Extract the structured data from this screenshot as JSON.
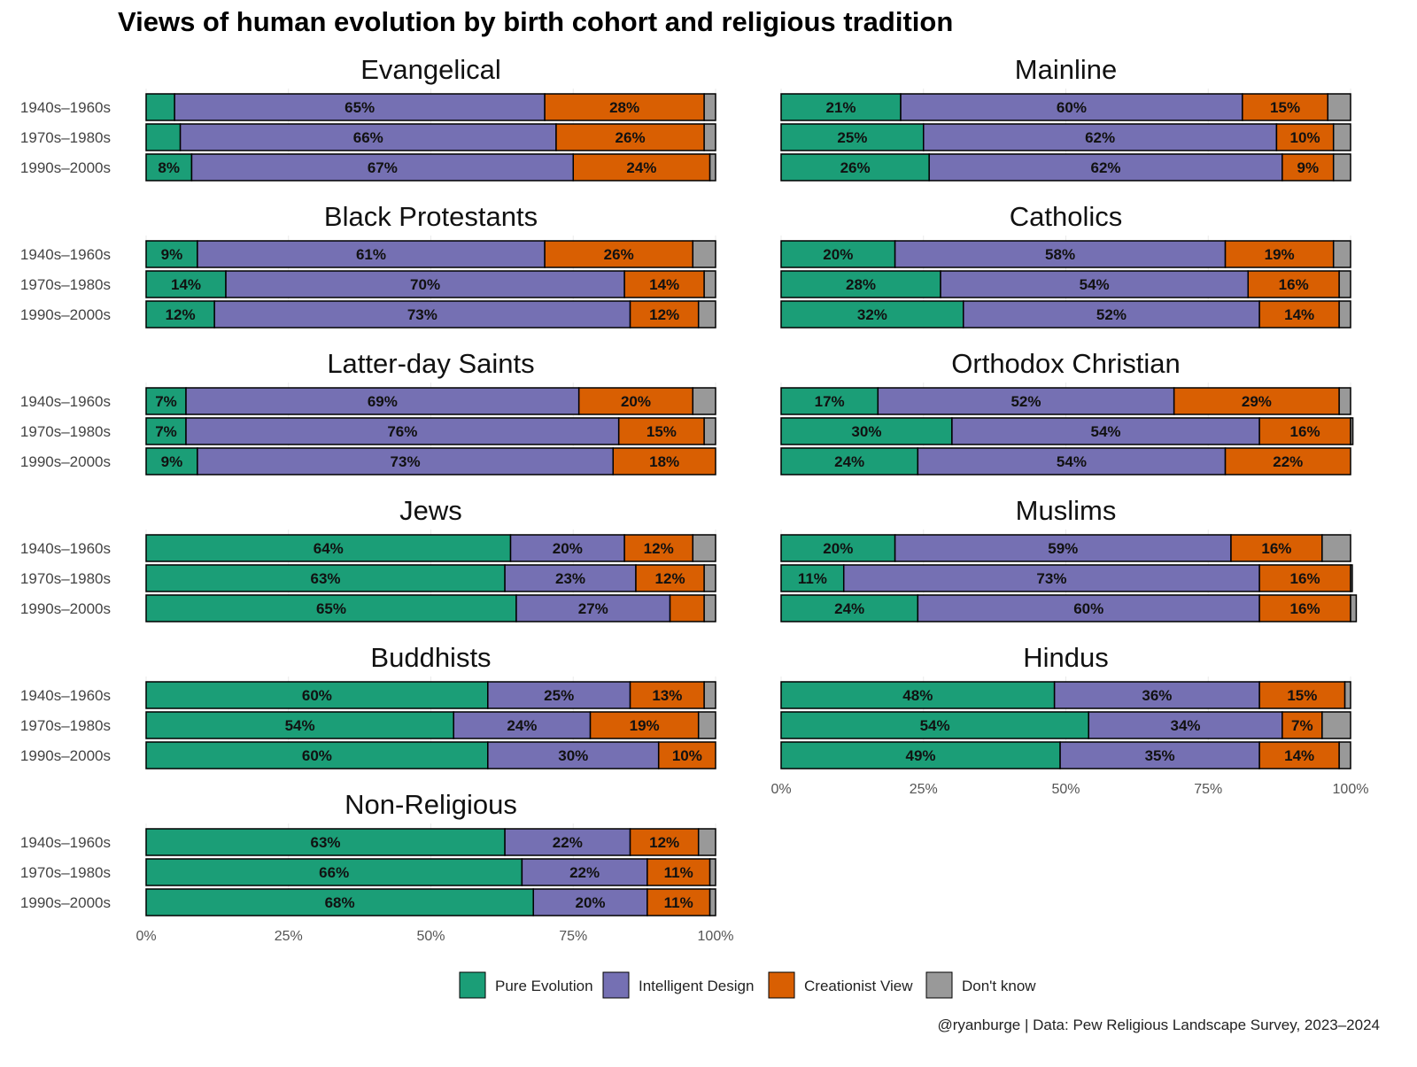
{
  "chart_data": {
    "type": "bar",
    "orientation": "horizontal-stacked",
    "title": "Views of human evolution by birth cohort and religious tradition",
    "caption": "@ryanburge | Data: Pew Religious Landscape Survey, 2023–2024",
    "categories": [
      "1940s–1960s",
      "1970s–1980s",
      "1990s–2000s"
    ],
    "xlim": [
      0,
      100
    ],
    "x_ticks": [
      "0%",
      "25%",
      "50%",
      "75%",
      "100%"
    ],
    "label_min_value": 7,
    "legend": {
      "position": "bottom",
      "entries": [
        {
          "name": "Pure Evolution",
          "color": "#1b9e77"
        },
        {
          "name": "Intelligent Design",
          "color": "#7570b3"
        },
        {
          "name": "Creationist View",
          "color": "#d95f02"
        },
        {
          "name": "Don't know",
          "color": "#999999"
        }
      ]
    },
    "panels": [
      {
        "name": "Evangelical",
        "rows": [
          [
            5,
            65,
            28,
            2
          ],
          [
            6,
            66,
            26,
            2
          ],
          [
            8,
            67,
            24,
            1
          ]
        ]
      },
      {
        "name": "Mainline",
        "rows": [
          [
            21,
            60,
            15,
            4
          ],
          [
            25,
            62,
            10,
            3
          ],
          [
            26,
            62,
            9,
            3
          ]
        ]
      },
      {
        "name": "Black Protestants",
        "rows": [
          [
            9,
            61,
            26,
            4
          ],
          [
            14,
            70,
            14,
            2
          ],
          [
            12,
            73,
            12,
            3
          ]
        ]
      },
      {
        "name": "Catholics",
        "rows": [
          [
            20,
            58,
            19,
            3
          ],
          [
            28,
            54,
            16,
            2
          ],
          [
            32,
            52,
            14,
            2
          ]
        ]
      },
      {
        "name": "Latter-day Saints",
        "rows": [
          [
            7,
            69,
            20,
            4
          ],
          [
            7,
            76,
            15,
            2
          ],
          [
            9,
            73,
            18,
            0
          ]
        ]
      },
      {
        "name": "Orthodox Christian",
        "rows": [
          [
            17,
            52,
            29,
            2
          ],
          [
            30,
            54,
            16,
            0.4
          ],
          [
            24,
            54,
            22,
            0
          ]
        ]
      },
      {
        "name": "Jews",
        "rows": [
          [
            64,
            20,
            12,
            4
          ],
          [
            63,
            23,
            12,
            2
          ],
          [
            65,
            27,
            6,
            2
          ]
        ]
      },
      {
        "name": "Muslims",
        "rows": [
          [
            20,
            59,
            16,
            5
          ],
          [
            11,
            73,
            16,
            0.3
          ],
          [
            24,
            60,
            16,
            1
          ]
        ]
      },
      {
        "name": "Buddhists",
        "rows": [
          [
            60,
            25,
            13,
            2
          ],
          [
            54,
            24,
            19,
            3
          ],
          [
            60,
            30,
            10,
            0
          ]
        ]
      },
      {
        "name": "Hindus",
        "rows": [
          [
            48,
            36,
            15,
            1
          ],
          [
            54,
            34,
            7,
            5
          ],
          [
            49,
            35,
            14,
            2
          ]
        ]
      },
      {
        "name": "Non-Religious",
        "rows": [
          [
            63,
            22,
            12,
            3
          ],
          [
            66,
            22,
            11,
            1
          ],
          [
            68,
            20,
            11,
            1
          ]
        ]
      }
    ]
  }
}
